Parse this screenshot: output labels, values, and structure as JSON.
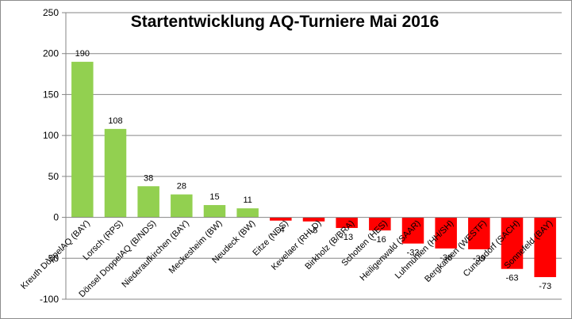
{
  "chart_data": {
    "type": "bar",
    "title": "Startentwicklung AQ-Turniere Mai 2016",
    "xlabel": "",
    "ylabel": "",
    "ylim": [
      -100,
      250
    ],
    "yticks": [
      -100,
      -50,
      0,
      50,
      100,
      150,
      200,
      250
    ],
    "grid": true,
    "legend": "none",
    "positive_color": "#92d050",
    "negative_color": "#ff0000",
    "categories": [
      "Kreuth DoppelAQ (BAY)",
      "Lorsch (RPS)",
      "Dönsel DoppelAQ (B/NDS)",
      "Niederaufkirchen (BAY)",
      "Meckesheim (BW)",
      "Neudeck (BW)",
      "Eitze (NDS)",
      "Kevelaer (RHLD)",
      "Birkholz (B/BRA)",
      "Schotten (HES)",
      "Heiligenwald (SAAR)",
      "Luhmühlen (HH/SH)",
      "Bergkamen (WESTF)",
      "Cunersdorf (SACH)",
      "Sonnefeld (BAY)"
    ],
    "values": [
      190,
      108,
      38,
      28,
      15,
      11,
      -4,
      -5,
      -13,
      -16,
      -32,
      -38,
      -39,
      -63,
      -73
    ]
  }
}
